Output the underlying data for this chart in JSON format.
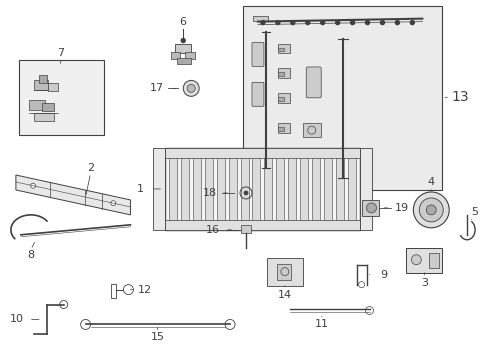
{
  "bg_color": "#ffffff",
  "line_color": "#404040",
  "gray_fill": "#e8e8e8",
  "dark_gray": "#999999",
  "light_gray": "#f2f2f2",
  "box_fill": "#eeeeee",
  "figsize": [
    4.89,
    3.6
  ],
  "dpi": 100
}
